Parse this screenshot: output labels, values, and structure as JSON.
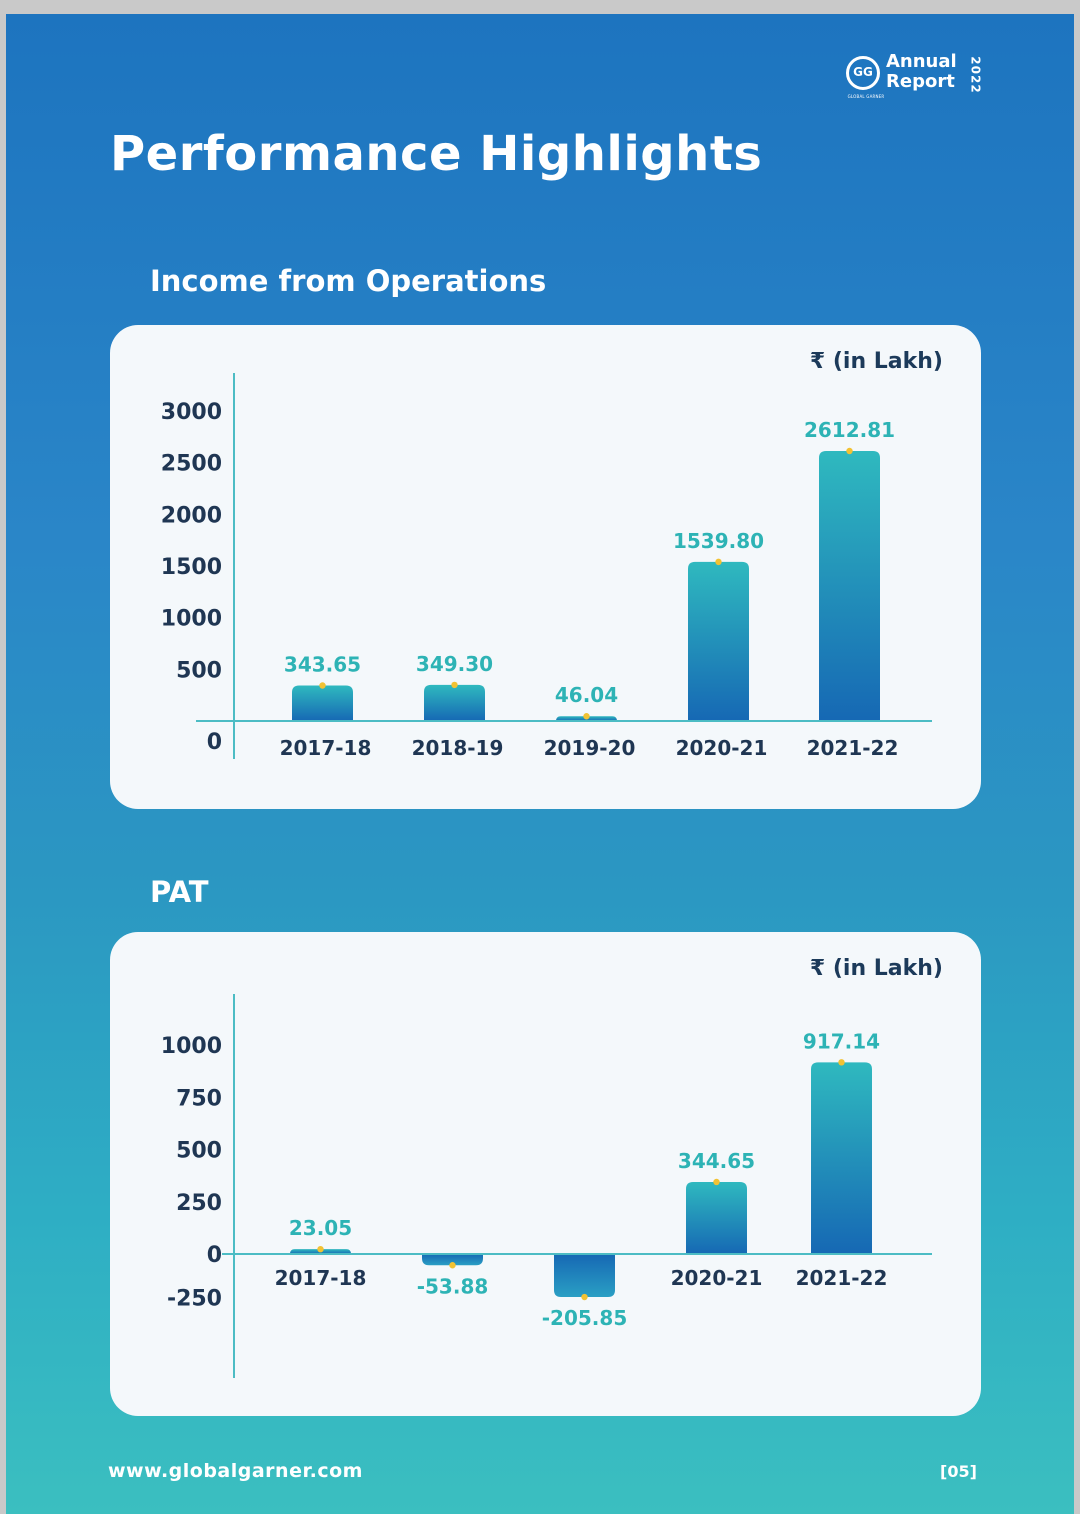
{
  "header": {
    "logo_text": "GG",
    "logo_subtext": "GLOBAL GARNER",
    "annual": "Annual",
    "report": "Report",
    "year": "2022"
  },
  "page_title": "Performance Highlights",
  "colors": {
    "bar_dark": "#1668b4",
    "bar_light": "#2fb9bf",
    "value_label": "#2db3b5",
    "axis": "#4cbcc4",
    "dot": "#f2c233"
  },
  "footer": {
    "url": "www.globalgarner.com",
    "page": "[05]"
  },
  "chart_data": [
    {
      "type": "bar",
      "section_title": "Income from Operations",
      "unit_label": "₹ (in Lakh)",
      "categories": [
        "2017-18",
        "2018-19",
        "2019-20",
        "2020-21",
        "2021-22"
      ],
      "values": [
        343.65,
        349.3,
        46.04,
        1539.8,
        2612.81
      ],
      "value_labels": [
        "343.65",
        "349.30",
        "46.04",
        "1539.80",
        "2612.81"
      ],
      "y_ticks": [
        0,
        500,
        1000,
        1500,
        2000,
        2500,
        3000
      ],
      "ylim": [
        0,
        3000
      ],
      "grid": false,
      "title": "",
      "xlabel": "",
      "ylabel": ""
    },
    {
      "type": "bar",
      "section_title": "PAT",
      "unit_label": "₹ (in Lakh)",
      "categories": [
        "2017-18",
        "2018-19",
        "2019-20",
        "2020-21",
        "2021-22"
      ],
      "values": [
        23.05,
        -53.88,
        -205.85,
        344.65,
        917.14
      ],
      "value_labels": [
        "23.05",
        "-53.88",
        "-205.85",
        "344.65",
        "917.14"
      ],
      "y_ticks": [
        -250,
        0,
        250,
        500,
        750,
        1000
      ],
      "ylim": [
        -250,
        1000
      ],
      "grid": false,
      "title": "",
      "xlabel": "",
      "ylabel": ""
    }
  ]
}
